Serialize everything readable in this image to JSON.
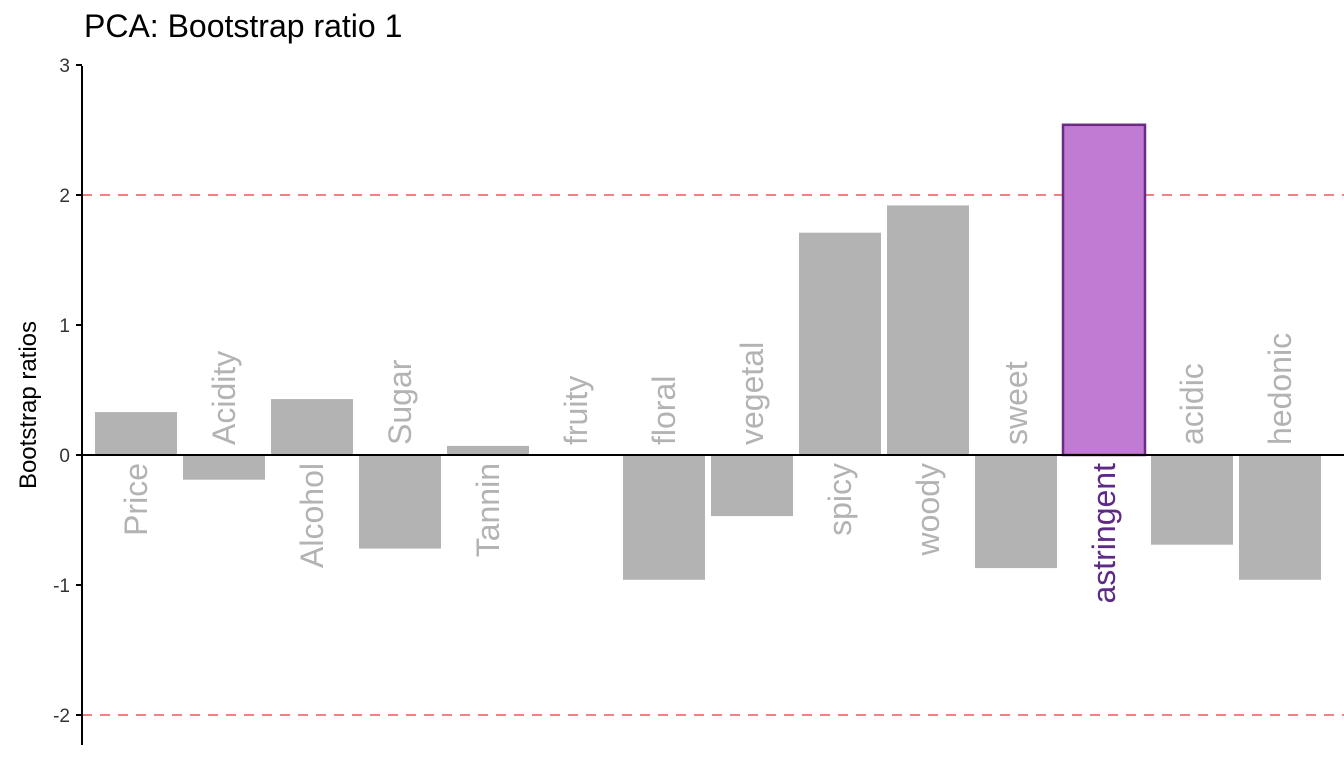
{
  "chart_data": {
    "type": "bar",
    "title": "PCA: Bootstrap ratio 1",
    "xlabel": "",
    "ylabel": "Bootstrap ratios",
    "ylim": [
      -2.2,
      3
    ],
    "yticks": [
      3,
      2,
      1,
      0,
      -1,
      -2
    ],
    "ytick_labels": [
      "3",
      "2",
      "1",
      "0",
      "-1",
      "-2"
    ],
    "threshold_lines": [
      2,
      -2
    ],
    "grid": false,
    "categories": [
      "Price",
      "Acidity",
      "Alcohol",
      "Sugar",
      "Tannin",
      "fruity",
      "floral",
      "vegetal",
      "spicy",
      "woody",
      "sweet",
      "astringent",
      "acidic",
      "hedonic"
    ],
    "values": [
      0.33,
      -0.19,
      0.43,
      -0.72,
      0.07,
      0.0,
      -0.96,
      -0.47,
      1.71,
      1.92,
      -0.87,
      2.54,
      -0.69,
      -0.96
    ],
    "significant": [
      false,
      false,
      false,
      false,
      false,
      false,
      false,
      false,
      false,
      false,
      false,
      true,
      false,
      false
    ]
  },
  "colors": {
    "bar_default": "#b3b3b3",
    "bar_significant_fill": "#c27bd3",
    "bar_significant_stroke": "#6a2b85",
    "label_default": "#b3b3b3",
    "label_significant": "#5e2a84",
    "threshold_line": "#f28080",
    "axis": "#000000"
  }
}
